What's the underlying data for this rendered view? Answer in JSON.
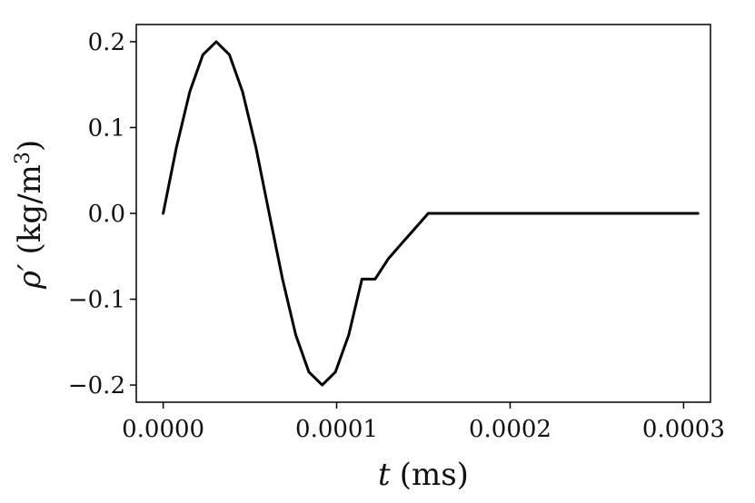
{
  "chart_data": {
    "type": "line",
    "xlabel": "t (ms)",
    "xlabel_parts": {
      "symbol": "t",
      "unit": "(ms)"
    },
    "ylabel": "ρ′ (kg/m³)",
    "ylabel_parts": {
      "symbol": "ρ′",
      "unit": "(kg/m",
      "exponent": "3",
      "close": ")"
    },
    "xlim": [
      -1.55e-05,
      0.0003155
    ],
    "ylim": [
      -0.22,
      0.22
    ],
    "x_ticks": [
      0.0,
      0.0001,
      0.0002,
      0.0003
    ],
    "x_tick_labels": [
      "0.0000",
      "0.0001",
      "0.0002",
      "0.0003"
    ],
    "y_ticks": [
      0.2,
      0.1,
      0.0,
      -0.1,
      -0.2
    ],
    "y_tick_labels": [
      "0.2",
      "0.1",
      "0.0",
      "−0.1",
      "−0.2"
    ],
    "grid": false,
    "line_color": "#000000",
    "series": [
      {
        "x": [
          0.0,
          7.6e-06,
          1.53e-05,
          2.29e-05,
          3.06e-05,
          3.82e-05,
          4.58e-05,
          5.35e-05,
          6.11e-05,
          6.88e-05,
          7.64e-05,
          8.4e-05,
          9.17e-05,
          9.93e-05,
          0.000107,
          0.0001146,
          0.0001222,
          0.0001299,
          0.0001375,
          0.0001452,
          0.0001528,
          0.00016,
          0.0002,
          0.00025,
          0.0003083
        ],
        "y": [
          0.0,
          0.0765,
          0.1414,
          0.1848,
          0.2,
          0.1848,
          0.1414,
          0.0765,
          0.0,
          -0.0765,
          -0.1414,
          -0.1848,
          -0.2,
          -0.1848,
          -0.1414,
          -0.0765,
          -0.0765,
          -0.0526,
          -0.035,
          -0.0175,
          0.0,
          0.0,
          0.0,
          0.0,
          0.0
        ]
      }
    ]
  }
}
